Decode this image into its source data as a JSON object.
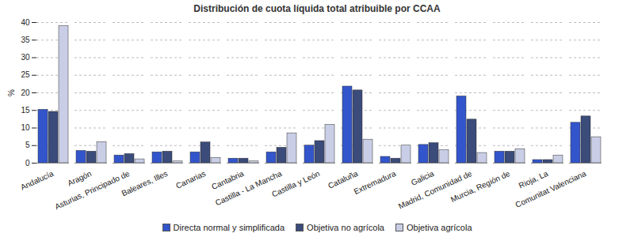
{
  "chart_data": {
    "type": "bar",
    "title": "Distribución de cuota líquida total atribuible por CCAA",
    "y_label": "%",
    "categories": [
      "Andalucía",
      "Aragón",
      "Asturias, Principado de",
      "Baleares, Illes",
      "Canarias",
      "Cantabria",
      "Castilla - La Mancha",
      "Castilla y León",
      "Cataluña",
      "Extremadura",
      "Galicia",
      "Madrid, Comunidad de",
      "Murcia, Región de",
      "Rioja, La",
      "Comunitat Valenciana"
    ],
    "series": [
      {
        "name": "Directa normal y simplificada",
        "color": "#3355cc",
        "values": [
          15.2,
          3.5,
          2.2,
          3.1,
          3.1,
          1.3,
          3.1,
          5.0,
          21.8,
          1.8,
          5.2,
          19.0,
          3.3,
          0.9,
          11.5
        ]
      },
      {
        "name": "Objetiva no agrícola",
        "color": "#3b4b7a",
        "values": [
          14.6,
          3.3,
          2.6,
          3.3,
          5.9,
          1.3,
          4.4,
          6.3,
          20.7,
          1.3,
          5.7,
          12.4,
          3.3,
          0.9,
          13.3
        ]
      },
      {
        "name": "Objetiva agrícola",
        "color": "#c9cee6",
        "values": [
          39.0,
          6.0,
          1.1,
          0.5,
          1.5,
          0.5,
          8.5,
          10.9,
          6.7,
          5.0,
          3.7,
          2.9,
          4.0,
          2.2,
          7.4
        ]
      }
    ],
    "ylim": [
      0,
      40
    ],
    "yticks": [
      0,
      5,
      10,
      15,
      20,
      25,
      30,
      35,
      40
    ],
    "grid": true,
    "legend": "bottom"
  }
}
